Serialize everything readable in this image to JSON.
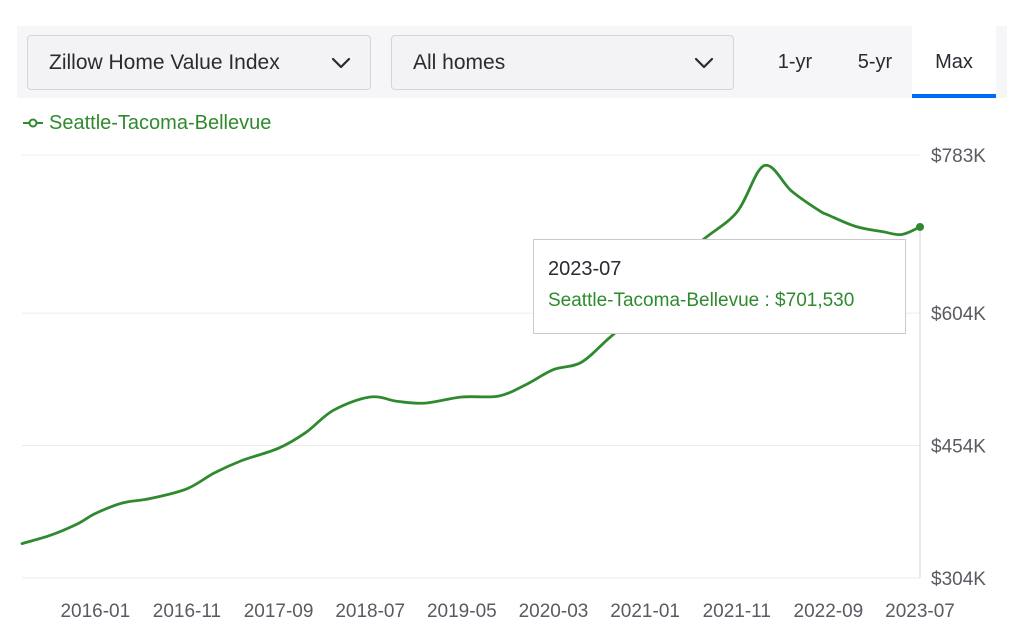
{
  "controls": {
    "metric_select": "Zillow Home Value Index",
    "home_type_select": "All homes",
    "ranges": [
      "1-yr",
      "5-yr",
      "Max"
    ],
    "active_range": "Max",
    "accent_color": "#006aff"
  },
  "legend": {
    "label": "Seattle-Tacoma-Bellevue",
    "color": "#2f8a2f"
  },
  "tooltip": {
    "date": "2023-07",
    "series_label": "Seattle-Tacoma-Bellevue : $701,530"
  },
  "chart_data": {
    "type": "line",
    "title": "",
    "xlabel": "",
    "ylabel": "",
    "x_range": [
      "2015-05",
      "2023-07"
    ],
    "ylim": [
      304000,
      783000
    ],
    "y_ticks": [
      304000,
      454000,
      604000,
      783000
    ],
    "y_tick_labels": [
      "$304K",
      "$454K",
      "$604K",
      "$783K"
    ],
    "x_tick_labels": [
      "2016-01",
      "2016-11",
      "2017-09",
      "2018-07",
      "2019-05",
      "2020-03",
      "2021-01",
      "2021-11",
      "2022-09",
      "2023-07"
    ],
    "grid": true,
    "series": [
      {
        "name": "Seattle-Tacoma-Bellevue",
        "color": "#2f8a2f",
        "x": [
          "2015-05",
          "2015-08",
          "2015-11",
          "2016-01",
          "2016-04",
          "2016-07",
          "2016-11",
          "2017-02",
          "2017-05",
          "2017-09",
          "2017-12",
          "2018-03",
          "2018-07",
          "2018-10",
          "2019-01",
          "2019-05",
          "2019-09",
          "2019-12",
          "2020-03",
          "2020-06",
          "2020-09",
          "2021-01",
          "2021-04",
          "2021-07",
          "2021-11",
          "2022-02",
          "2022-05",
          "2022-08",
          "2022-09",
          "2022-12",
          "2023-03",
          "2023-05",
          "2023-07"
        ],
        "values": [
          343000,
          352000,
          365000,
          377000,
          389000,
          394000,
          405000,
          423000,
          437000,
          451000,
          469000,
          494000,
          509000,
          504000,
          502000,
          509000,
          510000,
          523000,
          540000,
          548000,
          575000,
          612000,
          648000,
          684000,
          718000,
          771000,
          742000,
          720000,
          715000,
          702000,
          696000,
          693000,
          701530
        ]
      }
    ]
  }
}
